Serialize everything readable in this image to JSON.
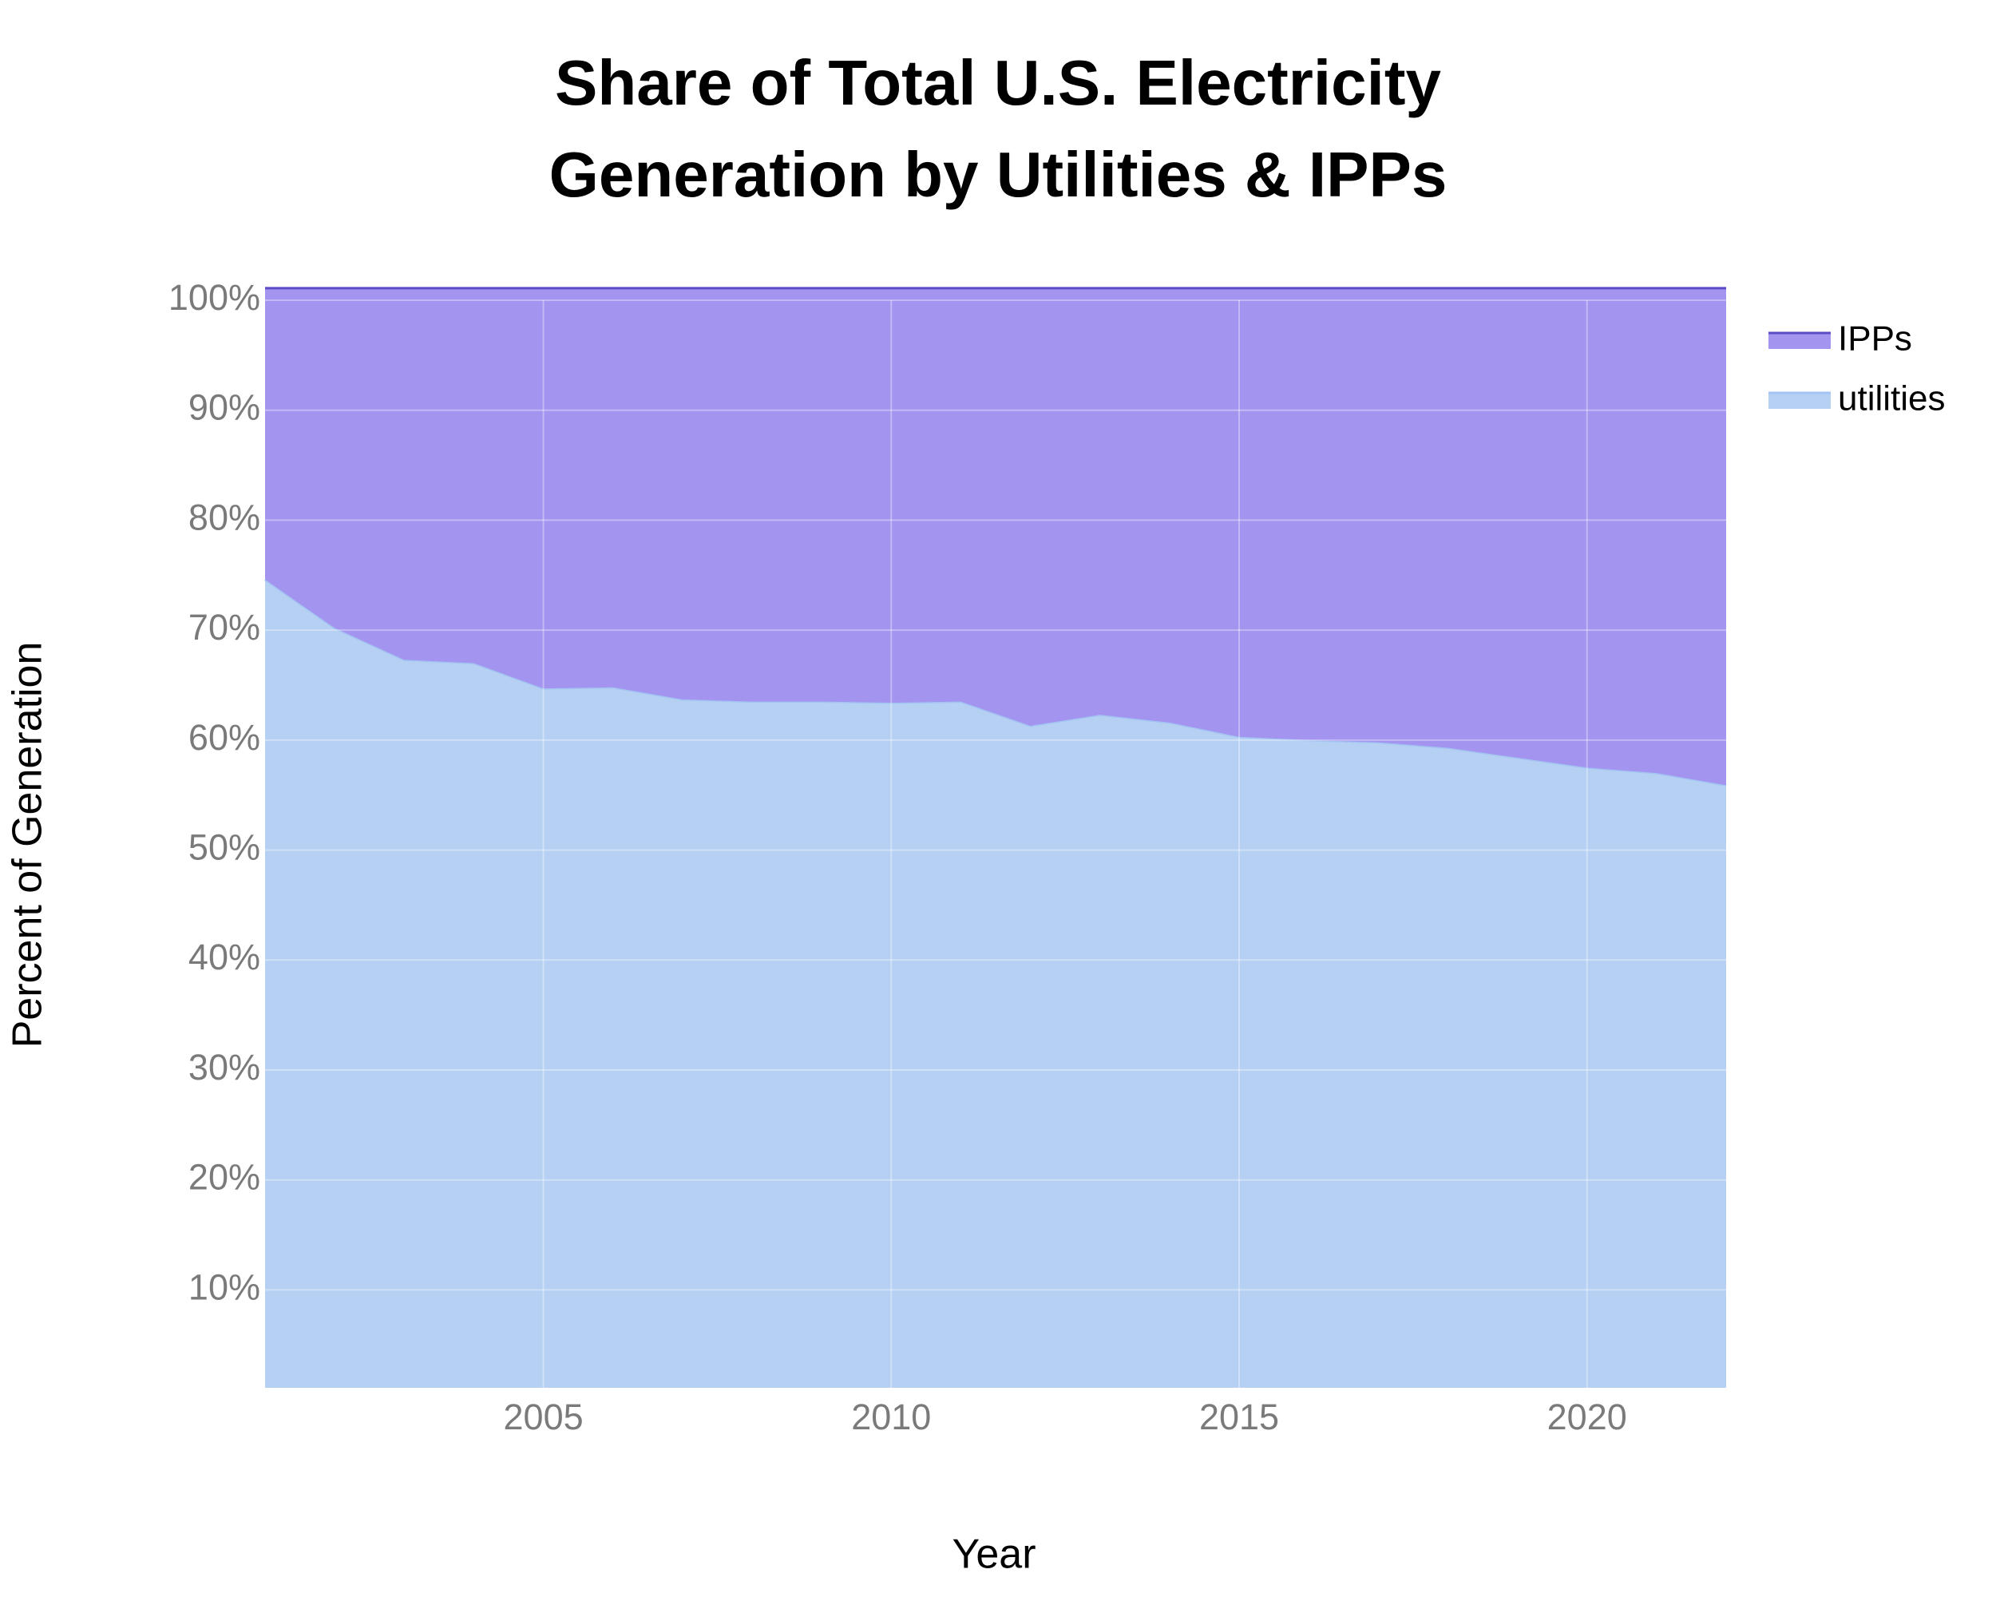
{
  "chart_data": {
    "type": "stacked-area",
    "title": [
      "Share of Total U.S. Electricity",
      "Generation by Utilities & IPPs"
    ],
    "x_label": "Year",
    "y_label": "Percent of Generation",
    "x": [
      2001,
      2002,
      2003,
      2004,
      2005,
      2006,
      2007,
      2008,
      2009,
      2010,
      2011,
      2012,
      2013,
      2014,
      2015,
      2016,
      2017,
      2018,
      2019,
      2020,
      2021,
      2022
    ],
    "series": [
      {
        "name": "utilities",
        "color": "#b5d0f3",
        "line_color": "#a3c4f2",
        "values": [
          73.5,
          69.1,
          66.2,
          65.9,
          63.6,
          63.7,
          62.6,
          62.4,
          62.4,
          62.3,
          62.4,
          60.2,
          61.2,
          60.5,
          59.2,
          58.9,
          58.7,
          58.2,
          57.3,
          56.4,
          55.9,
          54.8
        ]
      },
      {
        "name": "IPPs",
        "color": "#a394f0",
        "line_color": "#5b4bc4",
        "values": [
          26.5,
          30.9,
          33.8,
          34.1,
          36.4,
          36.3,
          37.4,
          37.6,
          37.6,
          37.7,
          37.6,
          39.8,
          38.8,
          39.5,
          40.8,
          41.1,
          41.3,
          41.8,
          42.7,
          43.6,
          44.1,
          45.2
        ]
      }
    ],
    "xlim": [
      2001,
      2022
    ],
    "xticks": [
      2005,
      2010,
      2015,
      2020
    ],
    "ylim": [
      1.1,
      100
    ],
    "yticks": [
      {
        "value": 10,
        "label": "10%"
      },
      {
        "value": 20,
        "label": "20%"
      },
      {
        "value": 30,
        "label": "30%"
      },
      {
        "value": 40,
        "label": "40%"
      },
      {
        "value": 50,
        "label": "50%"
      },
      {
        "value": 60,
        "label": "60%"
      },
      {
        "value": 70,
        "label": "70%"
      },
      {
        "value": 80,
        "label": "80%"
      },
      {
        "value": 90,
        "label": "90%"
      },
      {
        "value": 100,
        "label": "100%"
      }
    ],
    "grid": true,
    "legend": "top-right"
  }
}
